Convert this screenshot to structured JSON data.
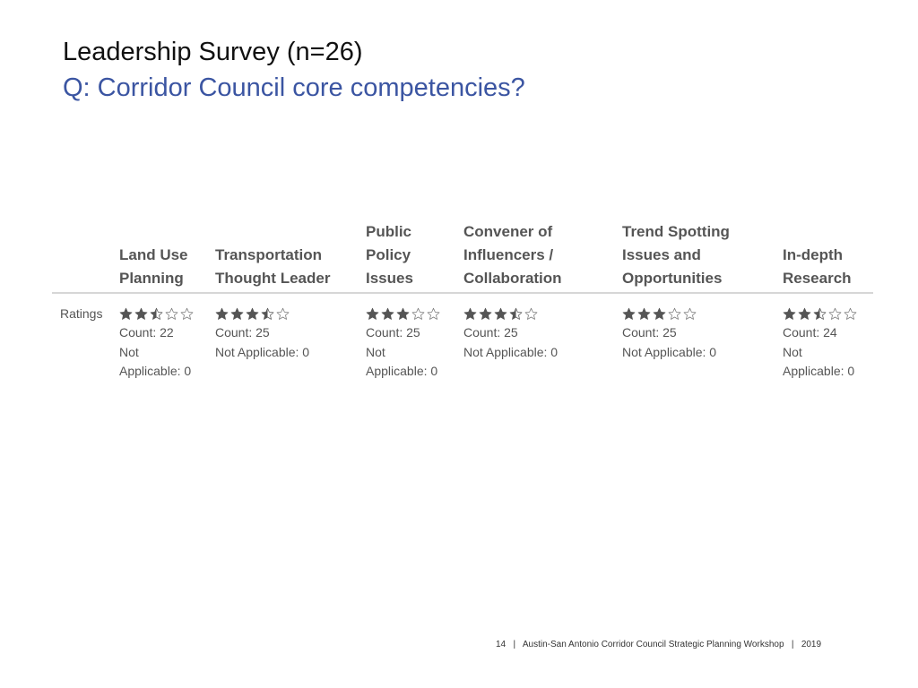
{
  "slide": {
    "title": "Leadership Survey (n=26)",
    "subtitle": "Q: Corridor Council core competencies?"
  },
  "survey": {
    "row_label": "Ratings",
    "star_color": "#555555",
    "max_stars": 5,
    "columns": [
      {
        "header": "Land Use\nPlanning",
        "rating": 2.5,
        "count": "Count: 22",
        "na": "Not\nApplicable: 0"
      },
      {
        "header": "Transportation\nThought Leader",
        "rating": 3.5,
        "count": "Count: 25",
        "na": "Not Applicable: 0"
      },
      {
        "header": "Public\nPolicy\nIssues",
        "rating": 3,
        "count": "Count: 25",
        "na": "Not\nApplicable: 0"
      },
      {
        "header": "Convener of\nInfluencers /\nCollaboration",
        "rating": 3.5,
        "count": "Count: 25",
        "na": "Not Applicable: 0"
      },
      {
        "header": "Trend Spotting\nIssues and\nOpportunities",
        "rating": 3,
        "count": "Count: 25",
        "na": "Not Applicable: 0"
      },
      {
        "header": "In-depth\nResearch",
        "rating": 2.5,
        "count": "Count: 24",
        "na": "Not\nApplicable: 0"
      }
    ]
  },
  "footer": {
    "page_number": "14",
    "separator": "|",
    "text": "Austin-San Antonio Corridor Council Strategic Planning Workshop",
    "year": "2019"
  }
}
